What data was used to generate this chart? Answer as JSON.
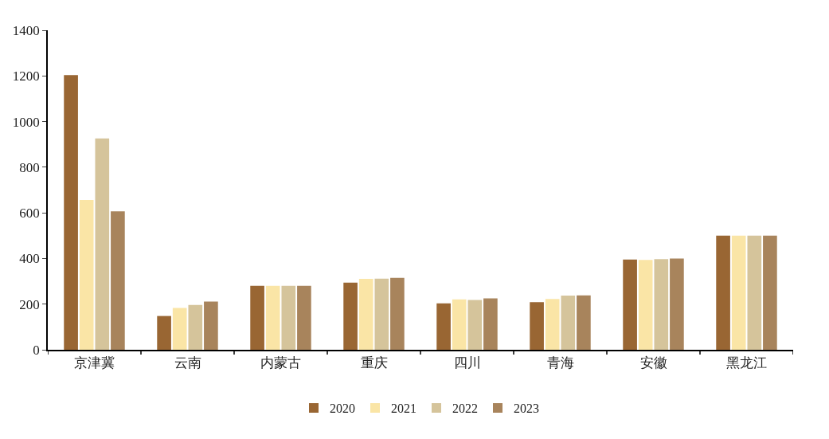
{
  "chart_data": {
    "type": "bar",
    "categories": [
      "京津冀",
      "云南",
      "内蒙古",
      "重庆",
      "四川",
      "青海",
      "安徽",
      "黑龙江"
    ],
    "series": [
      {
        "name": "2020",
        "color": "#996633",
        "values": [
          1204,
          148,
          280,
          294,
          203,
          209,
          395,
          500
        ]
      },
      {
        "name": "2021",
        "color": "#fae5a6",
        "values": [
          656,
          183,
          280,
          311,
          221,
          223,
          394,
          500
        ]
      },
      {
        "name": "2022",
        "color": "#d5c49b",
        "values": [
          926,
          196,
          280,
          312,
          218,
          237,
          397,
          500
        ]
      },
      {
        "name": "2023",
        "color": "#a8845c",
        "values": [
          607,
          211,
          280,
          315,
          225,
          238,
          400,
          500
        ]
      }
    ],
    "ylim": [
      0,
      1400
    ],
    "yticks": [
      0,
      200,
      400,
      600,
      800,
      1000,
      1200,
      1400
    ],
    "legend": "bottom"
  }
}
